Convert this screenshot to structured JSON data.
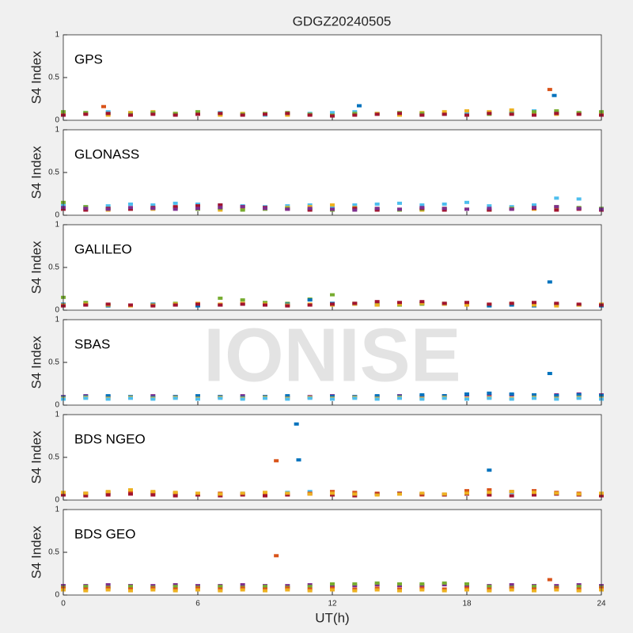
{
  "watermark": "IONISE",
  "chart_data": [
    {
      "type": "scatter",
      "title": "GDGZ20240505",
      "label": "GPS",
      "ylabel": "S4 Index",
      "xlim": [
        0,
        24
      ],
      "ylim": [
        0,
        1
      ],
      "yticks": [
        0,
        0.5,
        1
      ],
      "x": [
        0,
        1,
        2,
        3,
        4,
        5,
        6,
        7,
        8,
        9,
        10,
        11,
        12,
        13,
        14,
        15,
        16,
        17,
        18,
        19,
        20,
        21,
        22,
        23,
        24
      ],
      "series": [
        {
          "color": "#4DBEEE",
          "values": [
            0.08,
            0.09,
            0.1,
            0.09,
            0.08,
            0.07,
            0.08,
            0.09,
            0.07,
            0.06,
            0.07,
            0.08,
            0.09,
            0.1,
            0.08,
            0.07,
            0.06,
            0.07,
            0.08,
            0.09,
            0.1,
            0.11,
            0.09,
            0.08,
            0.09
          ]
        },
        {
          "color": "#EDB120",
          "values": [
            0.07,
            0.08,
            0.06,
            0.09,
            0.1,
            0.08,
            0.07,
            0.06,
            0.08,
            0.07,
            0.06,
            0.07,
            0.06,
            0.07,
            0.08,
            0.06,
            0.09,
            0.1,
            0.11,
            0.1,
            0.12,
            0.09,
            0.07,
            0.08,
            0.07
          ]
        },
        {
          "color": "#77AC30",
          "values": [
            0.1,
            0.09,
            0.08,
            0.07,
            0.09,
            0.08,
            0.1,
            0.08,
            0.07,
            0.08,
            0.09,
            0.07,
            0.06,
            0.08,
            0.07,
            0.09,
            0.08,
            0.07,
            0.06,
            0.07,
            0.08,
            0.1,
            0.11,
            0.09,
            0.1
          ]
        },
        {
          "color": "#A2142F",
          "values": [
            0.06,
            0.07,
            0.08,
            0.06,
            0.07,
            0.06,
            0.07,
            0.08,
            0.06,
            0.07,
            0.08,
            0.06,
            0.05,
            0.06,
            0.07,
            0.08,
            0.06,
            0.07,
            0.06,
            0.08,
            0.07,
            0.06,
            0.08,
            0.07,
            0.06
          ]
        },
        {
          "color": "#D95319",
          "x": [
            21.7,
            1.8
          ],
          "values": [
            0.36,
            0.16
          ]
        },
        {
          "color": "#0072BD",
          "x": [
            21.9,
            13.2
          ],
          "values": [
            0.29,
            0.17
          ]
        }
      ]
    },
    {
      "type": "scatter",
      "label": "GLONASS",
      "ylabel": "S4 Index",
      "xlim": [
        0,
        24
      ],
      "ylim": [
        0,
        1
      ],
      "yticks": [
        0,
        0.5,
        1
      ],
      "x": [
        0,
        1,
        2,
        3,
        4,
        5,
        6,
        7,
        8,
        9,
        10,
        11,
        12,
        13,
        14,
        15,
        16,
        17,
        18,
        19,
        20,
        21,
        22,
        23,
        24
      ],
      "series": [
        {
          "color": "#4DBEEE",
          "values": [
            0.12,
            0.1,
            0.11,
            0.13,
            0.12,
            0.14,
            0.13,
            0.12,
            0.11,
            0.1,
            0.11,
            0.12,
            0.1,
            0.12,
            0.13,
            0.14,
            0.12,
            0.13,
            0.15,
            0.11,
            0.1,
            0.12,
            0.2,
            0.19,
            0.08
          ]
        },
        {
          "color": "#EDB120",
          "values": [
            0.08,
            0.07,
            0.06,
            0.08,
            0.07,
            0.09,
            0.08,
            0.06,
            0.07,
            0.08,
            0.09,
            0.1,
            0.12,
            0.09,
            0.08,
            0.07,
            0.06,
            0.08,
            0.07,
            0.06,
            0.08,
            0.07,
            0.09,
            0.08,
            0.07
          ]
        },
        {
          "color": "#77AC30",
          "values": [
            0.15,
            0.1,
            0.08,
            0.07,
            0.08,
            0.09,
            0.07,
            0.08,
            0.06,
            0.07,
            0.08,
            0.07,
            0.06,
            0.08,
            0.07,
            0.06,
            0.07,
            0.08,
            0.07,
            0.06,
            0.08,
            0.09,
            0.1,
            0.09,
            0.08
          ]
        },
        {
          "color": "#A2142F",
          "values": [
            0.07,
            0.06,
            0.08,
            0.07,
            0.09,
            0.1,
            0.11,
            0.12,
            0.1,
            0.09,
            0.07,
            0.06,
            0.07,
            0.08,
            0.06,
            0.07,
            0.08,
            0.06,
            0.07,
            0.06,
            0.07,
            0.08,
            0.06,
            0.07,
            0.06
          ]
        },
        {
          "color": "#7E2F8E",
          "values": [
            0.09,
            0.08,
            0.07,
            0.09,
            0.08,
            0.07,
            0.08,
            0.09,
            0.1,
            0.08,
            0.07,
            0.08,
            0.07,
            0.06,
            0.08,
            0.07,
            0.09,
            0.08,
            0.07,
            0.08,
            0.07,
            0.09,
            0.1,
            0.08,
            0.07
          ]
        }
      ]
    },
    {
      "type": "scatter",
      "label": "GALILEO",
      "ylabel": "S4 Index",
      "xlim": [
        0,
        24
      ],
      "ylim": [
        0,
        1
      ],
      "yticks": [
        0,
        0.5,
        1
      ],
      "x": [
        0,
        1,
        2,
        3,
        4,
        5,
        6,
        7,
        8,
        9,
        10,
        11,
        12,
        13,
        14,
        15,
        16,
        17,
        18,
        19,
        20,
        21,
        22,
        23,
        24
      ],
      "series": [
        {
          "color": "#77AC30",
          "values": [
            0.15,
            0.09,
            0.07,
            0.06,
            0.07,
            0.08,
            0.07,
            0.14,
            0.12,
            0.09,
            0.08,
            0.13,
            0.18,
            0.08,
            0.07,
            0.06,
            0.07,
            0.08,
            0.07,
            0.06,
            0.07,
            0.08,
            0.07,
            0.06,
            0.07
          ]
        },
        {
          "color": "#0072BD",
          "values": [
            0.07,
            0.06,
            0.05,
            0.06,
            0.07,
            0.06,
            0.05,
            0.06,
            0.07,
            0.06,
            0.07,
            0.12,
            0.08,
            0.07,
            0.06,
            0.07,
            0.08,
            0.07,
            0.06,
            0.05,
            0.06,
            0.05,
            0.07,
            0.06,
            0.05
          ]
        },
        {
          "color": "#EDB120",
          "values": [
            0.06,
            0.07,
            0.06,
            0.05,
            0.06,
            0.07,
            0.08,
            0.07,
            0.08,
            0.07,
            0.06,
            0.07,
            0.06,
            0.07,
            0.06,
            0.07,
            0.08,
            0.07,
            0.06,
            0.07,
            0.08,
            0.06,
            0.05,
            0.06,
            0.07
          ]
        },
        {
          "color": "#A2142F",
          "values": [
            0.05,
            0.06,
            0.07,
            0.06,
            0.05,
            0.06,
            0.07,
            0.06,
            0.07,
            0.06,
            0.05,
            0.06,
            0.07,
            0.08,
            0.1,
            0.09,
            0.1,
            0.08,
            0.09,
            0.07,
            0.08,
            0.09,
            0.08,
            0.07,
            0.06
          ]
        },
        {
          "color": "#0072BD",
          "x": [
            21.7
          ],
          "values": [
            0.33
          ]
        }
      ]
    },
    {
      "type": "scatter",
      "label": "SBAS",
      "ylabel": "S4 Index",
      "xlim": [
        0,
        24
      ],
      "ylim": [
        0,
        1
      ],
      "yticks": [
        0,
        0.5,
        1
      ],
      "x": [
        0,
        1,
        2,
        3,
        4,
        5,
        6,
        7,
        8,
        9,
        10,
        11,
        12,
        13,
        14,
        15,
        16,
        17,
        18,
        19,
        20,
        21,
        22,
        23,
        24
      ],
      "series": [
        {
          "color": "#7E2F8E",
          "values": [
            0.1,
            0.11,
            0.1,
            0.09,
            0.11,
            0.1,
            0.09,
            0.1,
            0.11,
            0.1,
            0.09,
            0.1,
            0.11,
            0.1,
            0.1,
            0.11,
            0.1,
            0.11,
            0.12,
            0.11,
            0.12,
            0.11,
            0.12,
            0.13,
            0.12
          ]
        },
        {
          "color": "#0072BD",
          "values": [
            0.09,
            0.1,
            0.11,
            0.1,
            0.09,
            0.1,
            0.11,
            0.1,
            0.09,
            0.1,
            0.11,
            0.09,
            0.1,
            0.1,
            0.11,
            0.1,
            0.12,
            0.11,
            0.13,
            0.14,
            0.13,
            0.12,
            0.11,
            0.12,
            0.11
          ]
        },
        {
          "color": "#EDB120",
          "values": [
            0.08,
            0.09,
            0.08,
            0.09,
            0.08,
            0.09,
            0.08,
            0.09,
            0.08,
            0.09,
            0.08,
            0.09,
            0.08,
            0.09,
            0.08,
            0.09,
            0.08,
            0.09,
            0.08,
            0.09,
            0.08,
            0.09,
            0.08,
            0.09,
            0.08
          ]
        },
        {
          "color": "#4DBEEE",
          "values": [
            0.07,
            0.08,
            0.07,
            0.08,
            0.07,
            0.08,
            0.07,
            0.08,
            0.07,
            0.08,
            0.07,
            0.08,
            0.07,
            0.08,
            0.07,
            0.08,
            0.07,
            0.08,
            0.07,
            0.08,
            0.07,
            0.08,
            0.07,
            0.08,
            0.07
          ]
        },
        {
          "color": "#0072BD",
          "x": [
            21.7
          ],
          "values": [
            0.37
          ]
        }
      ]
    },
    {
      "type": "scatter",
      "label": "BDS NGEO",
      "ylabel": "S4 Index",
      "xlim": [
        0,
        24
      ],
      "ylim": [
        0,
        1
      ],
      "yticks": [
        0,
        0.5,
        1
      ],
      "x": [
        0,
        1,
        2,
        3,
        4,
        5,
        6,
        7,
        8,
        9,
        10,
        11,
        12,
        13,
        14,
        15,
        16,
        17,
        18,
        19,
        20,
        21,
        22,
        23,
        24
      ],
      "series": [
        {
          "color": "#4DBEEE",
          "values": [
            0.08,
            0.07,
            0.08,
            0.09,
            0.08,
            0.07,
            0.06,
            0.07,
            0.08,
            0.07,
            0.09,
            0.1,
            0.09,
            0.08,
            0.07,
            0.08,
            0.07,
            0.06,
            0.07,
            0.08,
            0.09,
            0.08,
            0.07,
            0.06,
            0.07
          ]
        },
        {
          "color": "#D95319",
          "values": [
            0.07,
            0.08,
            0.09,
            0.1,
            0.09,
            0.08,
            0.07,
            0.08,
            0.07,
            0.06,
            0.07,
            0.08,
            0.1,
            0.09,
            0.08,
            0.07,
            0.06,
            0.07,
            0.11,
            0.12,
            0.1,
            0.11,
            0.09,
            0.08,
            0.07
          ]
        },
        {
          "color": "#A2142F",
          "values": [
            0.06,
            0.05,
            0.06,
            0.07,
            0.06,
            0.05,
            0.06,
            0.05,
            0.06,
            0.05,
            0.06,
            0.07,
            0.06,
            0.05,
            0.07,
            0.08,
            0.07,
            0.06,
            0.07,
            0.06,
            0.05,
            0.06,
            0.07,
            0.06,
            0.05
          ]
        },
        {
          "color": "#EDB120",
          "values": [
            0.09,
            0.08,
            0.1,
            0.12,
            0.1,
            0.09,
            0.08,
            0.07,
            0.08,
            0.09,
            0.08,
            0.07,
            0.08,
            0.07,
            0.06,
            0.07,
            0.08,
            0.07,
            0.08,
            0.09,
            0.1,
            0.09,
            0.08,
            0.07,
            0.08
          ]
        },
        {
          "color": "#D95319",
          "x": [
            9.5
          ],
          "values": [
            0.46
          ]
        },
        {
          "color": "#0072BD",
          "x": [
            10.4,
            10.5,
            19
          ],
          "values": [
            0.89,
            0.47,
            0.35
          ]
        }
      ]
    },
    {
      "type": "scatter",
      "label": "BDS GEO",
      "ylabel": "S4 Index",
      "xlabel": "UT(h)",
      "xlim": [
        0,
        24
      ],
      "ylim": [
        0,
        1
      ],
      "yticks": [
        0,
        0.5,
        1
      ],
      "xticks": [
        0,
        6,
        12,
        18,
        24
      ],
      "x": [
        0,
        1,
        2,
        3,
        4,
        5,
        6,
        7,
        8,
        9,
        10,
        11,
        12,
        13,
        14,
        15,
        16,
        17,
        18,
        19,
        20,
        21,
        22,
        23,
        24
      ],
      "series": [
        {
          "color": "#7E2F8E",
          "values": [
            0.11,
            0.11,
            0.12,
            0.11,
            0.11,
            0.12,
            0.11,
            0.11,
            0.12,
            0.11,
            0.11,
            0.12,
            0.11,
            0.11,
            0.12,
            0.11,
            0.11,
            0.12,
            0.11,
            0.11,
            0.12,
            0.11,
            0.11,
            0.12,
            0.11
          ]
        },
        {
          "color": "#77AC30",
          "values": [
            0.09,
            0.1,
            0.09,
            0.1,
            0.09,
            0.1,
            0.09,
            0.1,
            0.09,
            0.1,
            0.09,
            0.1,
            0.13,
            0.13,
            0.14,
            0.13,
            0.13,
            0.14,
            0.13,
            0.1,
            0.09,
            0.1,
            0.09,
            0.1,
            0.09
          ]
        },
        {
          "color": "#D95319",
          "values": [
            0.08,
            0.07,
            0.08,
            0.07,
            0.08,
            0.07,
            0.08,
            0.07,
            0.08,
            0.07,
            0.08,
            0.07,
            0.08,
            0.07,
            0.08,
            0.07,
            0.08,
            0.07,
            0.08,
            0.07,
            0.08,
            0.07,
            0.08,
            0.07,
            0.08
          ]
        },
        {
          "color": "#EDB120",
          "values": [
            0.06,
            0.05,
            0.06,
            0.05,
            0.06,
            0.05,
            0.06,
            0.05,
            0.06,
            0.05,
            0.06,
            0.05,
            0.06,
            0.05,
            0.06,
            0.05,
            0.06,
            0.05,
            0.06,
            0.05,
            0.06,
            0.05,
            0.06,
            0.05,
            0.06
          ]
        },
        {
          "color": "#D95319",
          "x": [
            9.5,
            21.7
          ],
          "values": [
            0.46,
            0.18
          ]
        }
      ]
    }
  ]
}
